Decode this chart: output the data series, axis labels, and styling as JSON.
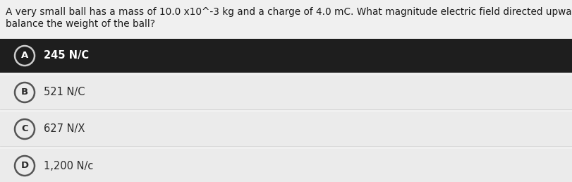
{
  "question_line1": "A very small ball has a mass of 10.0 x10^-3 kg and a charge of 4.0 mC. What magnitude electric field directed upward will",
  "question_line2": "balance the weight of the ball?",
  "options": [
    {
      "letter": "A",
      "text": "245 N/C",
      "correct": true
    },
    {
      "letter": "B",
      "text": "521 N/C",
      "correct": false
    },
    {
      "letter": "C",
      "text": "627 N/X",
      "correct": false
    },
    {
      "letter": "D",
      "text": "1,200 N/c",
      "correct": false
    }
  ],
  "bg_color": "#f0f0f0",
  "correct_bg": "#1e1e1e",
  "wrong_bg": "#ebebeb",
  "correct_text_color": "#ffffff",
  "wrong_text_color": "#2a2a2a",
  "question_color": "#1a1a1a",
  "question_fontsize": 9.8,
  "option_fontsize": 10.5,
  "letter_fontsize": 9.5,
  "fig_width": 8.11,
  "fig_height": 2.58,
  "dpi": 100
}
